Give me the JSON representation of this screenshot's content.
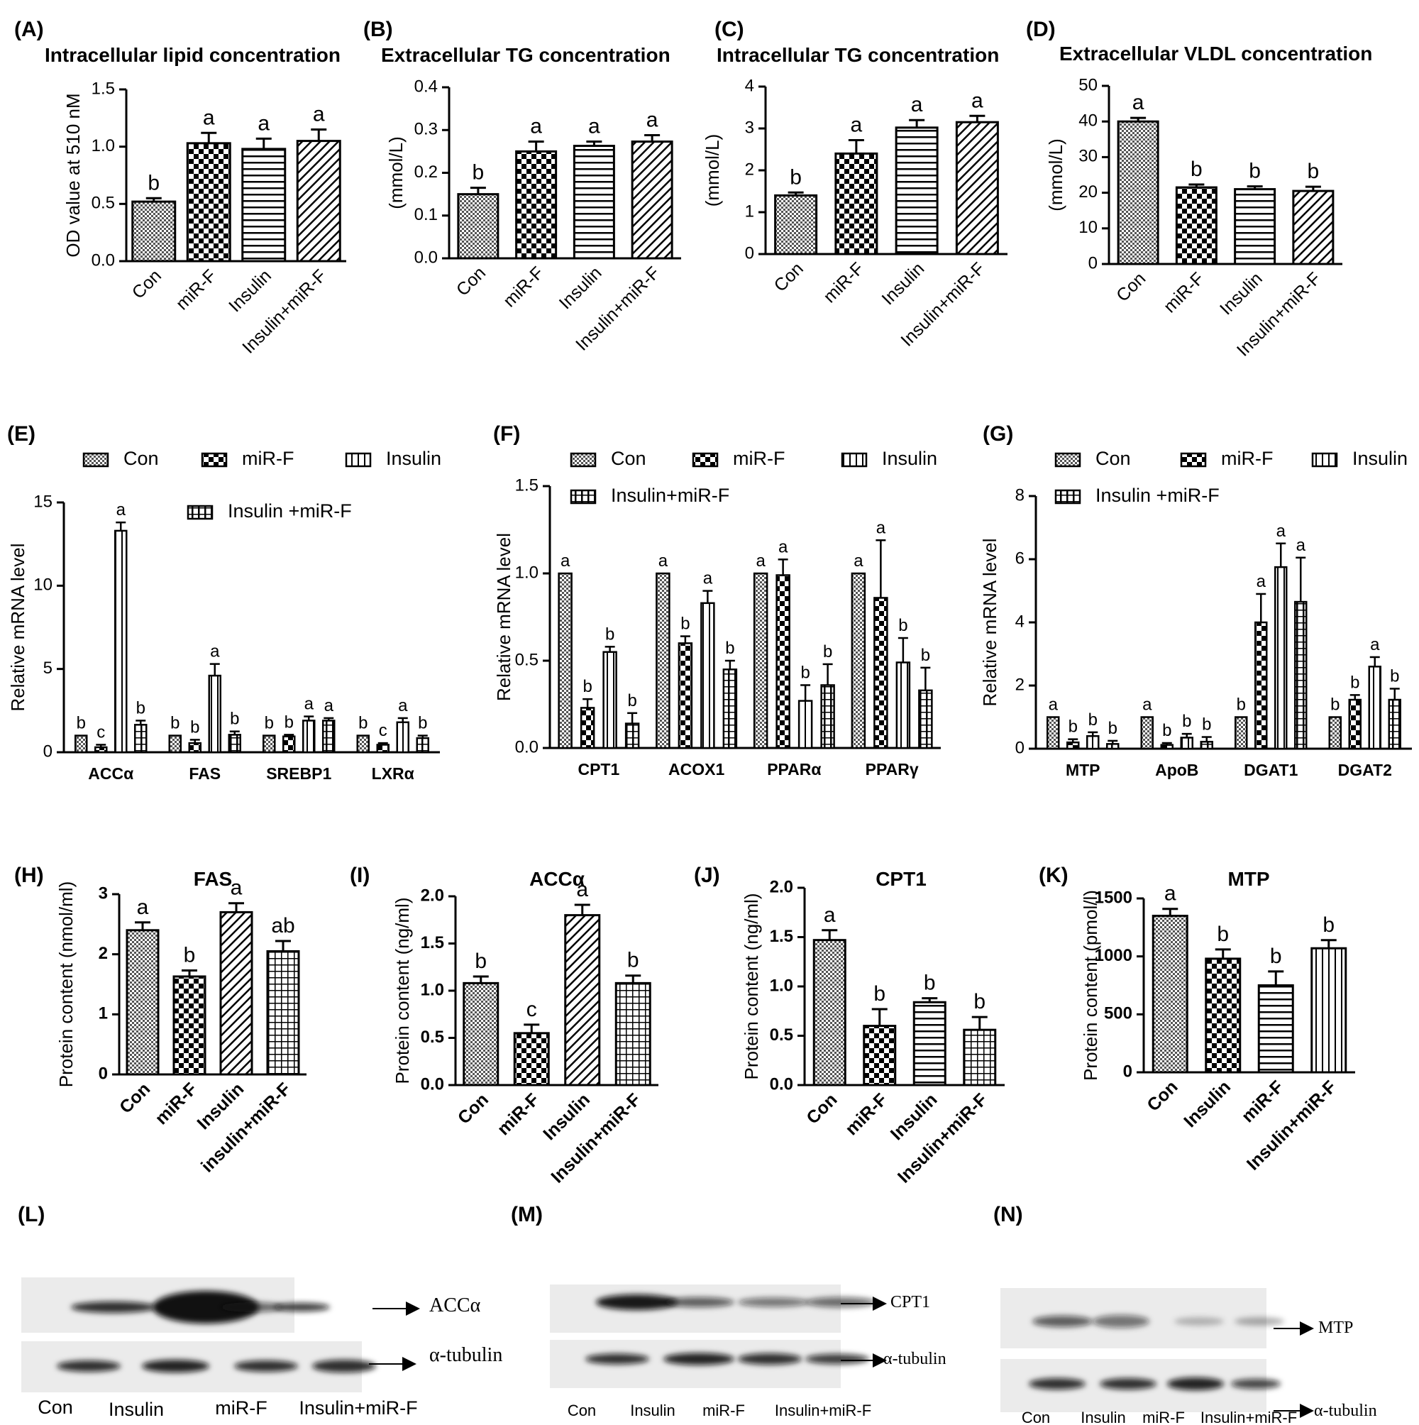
{
  "chart_data": [
    {
      "id": "A",
      "type": "bar",
      "panel_label": "(A)",
      "title": "Intracellular lipid concentration",
      "ylabel": "OD value at 510 nM",
      "ylim": [
        0,
        1.5
      ],
      "yticks": [
        "0.0",
        "0.5",
        "1.0",
        "1.5"
      ],
      "categories": [
        "Con",
        "miR-F",
        "Insulin",
        "Insulin+miR-F"
      ],
      "values": [
        0.52,
        1.03,
        0.98,
        1.05
      ],
      "errors": [
        0.03,
        0.09,
        0.09,
        0.1
      ],
      "letters": [
        "b",
        "a",
        "a",
        "a"
      ]
    },
    {
      "id": "B",
      "type": "bar",
      "panel_label": "(B)",
      "title": "Extracellular TG concentration",
      "ylabel": "(mmol/L)",
      "ylim": [
        0,
        0.4
      ],
      "yticks": [
        "0.0",
        "0.1",
        "0.2",
        "0.3",
        "0.4"
      ],
      "categories": [
        "Con",
        "miR-F",
        "Insulin",
        "Insulin+miR-F"
      ],
      "values": [
        0.15,
        0.25,
        0.263,
        0.273
      ],
      "errors": [
        0.015,
        0.023,
        0.01,
        0.015
      ],
      "letters": [
        "b",
        "a",
        "a",
        "a"
      ]
    },
    {
      "id": "C",
      "type": "bar",
      "panel_label": "(C)",
      "title": "Intracellular TG concentration",
      "ylabel": "(mmol/L)",
      "ylim": [
        0,
        4
      ],
      "yticks": [
        "0",
        "1",
        "2",
        "3",
        "4"
      ],
      "categories": [
        "Con",
        "miR-F",
        "Insulin",
        "Insulin+miR-F"
      ],
      "values": [
        1.4,
        2.4,
        3.02,
        3.15
      ],
      "errors": [
        0.07,
        0.32,
        0.18,
        0.15
      ],
      "letters": [
        "b",
        "a",
        "a",
        "a"
      ]
    },
    {
      "id": "D",
      "type": "bar",
      "panel_label": "(D)",
      "title": "Extracellular VLDL concentration",
      "ylabel": "(mmol/L)",
      "ylim": [
        0,
        50
      ],
      "yticks": [
        "0",
        "10",
        "20",
        "30",
        "40",
        "50"
      ],
      "categories": [
        "Con",
        "miR-F",
        "Insulin",
        "Insulin+miR-F"
      ],
      "values": [
        40,
        21.5,
        21,
        20.5
      ],
      "errors": [
        1,
        0.8,
        0.8,
        1.2
      ],
      "letters": [
        "a",
        "b",
        "b",
        "b"
      ]
    },
    {
      "id": "E",
      "type": "bar",
      "panel_label": "(E)",
      "ylabel": "Relative mRNA level",
      "ylim": [
        0,
        15
      ],
      "yticks": [
        "0",
        "5",
        "10",
        "15"
      ],
      "categories": [
        "ACCα",
        "FAS",
        "SREBP1",
        "LXRα"
      ],
      "legend": [
        "Con",
        "miR-F",
        "Insulin",
        "Insulin +miR-F"
      ],
      "series": [
        {
          "name": "Con",
          "values": [
            1,
            1,
            1,
            1
          ],
          "errors": [
            0,
            0,
            0,
            0
          ],
          "letters": [
            "b",
            "b",
            "b",
            "b"
          ]
        },
        {
          "name": "miR-F",
          "values": [
            0.3,
            0.55,
            0.95,
            0.45
          ],
          "errors": [
            0.15,
            0.2,
            0.1,
            0.1
          ],
          "letters": [
            "c",
            "b",
            "b",
            "c"
          ]
        },
        {
          "name": "Insulin",
          "values": [
            13.3,
            4.6,
            1.9,
            1.8
          ],
          "errors": [
            0.5,
            0.7,
            0.25,
            0.25
          ],
          "letters": [
            "a",
            "a",
            "a",
            "a"
          ]
        },
        {
          "name": "Insulin +miR-F",
          "values": [
            1.65,
            1.05,
            1.9,
            0.85
          ],
          "errors": [
            0.25,
            0.2,
            0.15,
            0.15
          ],
          "letters": [
            "b",
            "b",
            "a",
            "b"
          ]
        }
      ]
    },
    {
      "id": "F",
      "type": "bar",
      "panel_label": "(F)",
      "ylabel": "Relative mRNA level",
      "ylim": [
        0,
        1.5
      ],
      "yticks": [
        "0.0",
        "0.5",
        "1.0",
        "1.5"
      ],
      "categories": [
        "CPT1",
        "ACOX1",
        "PPARα",
        "PPARγ"
      ],
      "legend": [
        "Con",
        "miR-F",
        "Insulin",
        "Insulin+miR-F"
      ],
      "series": [
        {
          "name": "Con",
          "values": [
            1,
            1,
            1,
            1
          ],
          "errors": [
            0,
            0,
            0,
            0
          ],
          "letters": [
            "a",
            "a",
            "a",
            "a"
          ]
        },
        {
          "name": "miR-F",
          "values": [
            0.23,
            0.6,
            0.99,
            0.86
          ],
          "errors": [
            0.05,
            0.04,
            0.09,
            0.33
          ],
          "letters": [
            "b",
            "b",
            "a",
            "a"
          ]
        },
        {
          "name": "Insulin",
          "values": [
            0.55,
            0.83,
            0.27,
            0.49
          ],
          "errors": [
            0.03,
            0.07,
            0.09,
            0.14
          ],
          "letters": [
            "b",
            "a",
            "b",
            "b"
          ]
        },
        {
          "name": "Insulin+miR-F",
          "values": [
            0.14,
            0.45,
            0.36,
            0.33
          ],
          "errors": [
            0.06,
            0.05,
            0.12,
            0.13
          ],
          "letters": [
            "b",
            "b",
            "b",
            "b"
          ]
        }
      ]
    },
    {
      "id": "G",
      "type": "bar",
      "panel_label": "(G)",
      "ylabel": "Relative mRNA level",
      "ylim": [
        0,
        8
      ],
      "yticks": [
        "0",
        "2",
        "4",
        "6",
        "8"
      ],
      "categories": [
        "MTP",
        "ApoB",
        "DGAT1",
        "DGAT2"
      ],
      "legend": [
        "Con",
        "miR-F",
        "Insulin",
        "Insulin +miR-F"
      ],
      "series": [
        {
          "name": "Con",
          "values": [
            1,
            1,
            1,
            1
          ],
          "errors": [
            0,
            0,
            0,
            0
          ],
          "letters": [
            "a",
            "a",
            "b",
            "b"
          ]
        },
        {
          "name": "miR-F",
          "values": [
            0.2,
            0.12,
            4.0,
            1.55
          ],
          "errors": [
            0.1,
            0.06,
            0.9,
            0.15
          ],
          "letters": [
            "b",
            "b",
            "a",
            "b"
          ]
        },
        {
          "name": "Insulin",
          "values": [
            0.4,
            0.35,
            5.75,
            2.6
          ],
          "errors": [
            0.12,
            0.12,
            0.75,
            0.3
          ],
          "letters": [
            "b",
            "b",
            "a",
            "a"
          ]
        },
        {
          "name": "Insulin +miR-F",
          "values": [
            0.15,
            0.22,
            4.65,
            1.55
          ],
          "errors": [
            0.1,
            0.15,
            1.4,
            0.35
          ],
          "letters": [
            "b",
            "b",
            "a",
            "b"
          ]
        }
      ]
    },
    {
      "id": "H",
      "type": "bar",
      "panel_label": "(H)",
      "title": "FAS",
      "ylabel": "Protein content (nmol/ml)",
      "ylim": [
        0,
        3
      ],
      "yticks": [
        "0",
        "1",
        "2",
        "3"
      ],
      "categories": [
        "Con",
        "miR-F",
        "Insulin",
        "insulin+miR-F"
      ],
      "values": [
        2.4,
        1.63,
        2.7,
        2.05
      ],
      "errors": [
        0.13,
        0.1,
        0.15,
        0.17
      ],
      "letters": [
        "a",
        "b",
        "a",
        "ab"
      ]
    },
    {
      "id": "I",
      "type": "bar",
      "panel_label": "(I)",
      "title": "ACCα",
      "ylabel": "Protein content (ng/ml)",
      "ylim": [
        0,
        2.0
      ],
      "yticks": [
        "0.0",
        "0.5",
        "1.0",
        "1.5",
        "2.0"
      ],
      "categories": [
        "Con",
        "miR-F",
        "Insulin",
        "Insulin+miR-F"
      ],
      "values": [
        1.08,
        0.55,
        1.8,
        1.08
      ],
      "errors": [
        0.07,
        0.09,
        0.11,
        0.08
      ],
      "letters": [
        "b",
        "c",
        "a",
        "b"
      ]
    },
    {
      "id": "J",
      "type": "bar",
      "panel_label": "(J)",
      "title": "CPT1",
      "ylabel": "Protein content (ng/ml)",
      "ylim": [
        0,
        2.0
      ],
      "yticks": [
        "0.0",
        "0.5",
        "1.0",
        "1.5",
        "2.0"
      ],
      "categories": [
        "Con",
        "miR-F",
        "Insulin",
        "Insulin+miR-F"
      ],
      "values": [
        1.47,
        0.6,
        0.84,
        0.56
      ],
      "errors": [
        0.1,
        0.17,
        0.04,
        0.13
      ],
      "letters": [
        "a",
        "b",
        "b",
        "b"
      ]
    },
    {
      "id": "K",
      "type": "bar",
      "panel_label": "(K)",
      "title": "MTP",
      "ylabel": "Protein content (pmol/l)",
      "ylim": [
        0,
        1500
      ],
      "yticks": [
        "0",
        "500",
        "1000",
        "1500"
      ],
      "categories": [
        "Con",
        "Insulin",
        "miR-F",
        "Insulin+miR-F"
      ],
      "values": [
        1350,
        980,
        750,
        1070
      ],
      "errors": [
        60,
        80,
        120,
        70
      ],
      "letters": [
        "a",
        "b",
        "b",
        "b"
      ]
    }
  ],
  "blots": [
    {
      "id": "L",
      "panel_label": "(L)",
      "lanes": [
        "Con",
        "Insulin",
        "miR-F",
        "Insulin+miR-F"
      ],
      "bands": [
        "ACCα",
        "α-tubulin"
      ]
    },
    {
      "id": "M",
      "panel_label": "(M)",
      "lanes": [
        "Con",
        "Insulin",
        "miR-F",
        "Insulin+miR-F"
      ],
      "bands": [
        "CPT1",
        "α-tubulin"
      ]
    },
    {
      "id": "N",
      "panel_label": "(N)",
      "lanes": [
        "Con",
        "Insulin",
        "miR-F",
        "Insulin+miR-F"
      ],
      "bands": [
        "MTP",
        "α-tubulin"
      ]
    }
  ]
}
